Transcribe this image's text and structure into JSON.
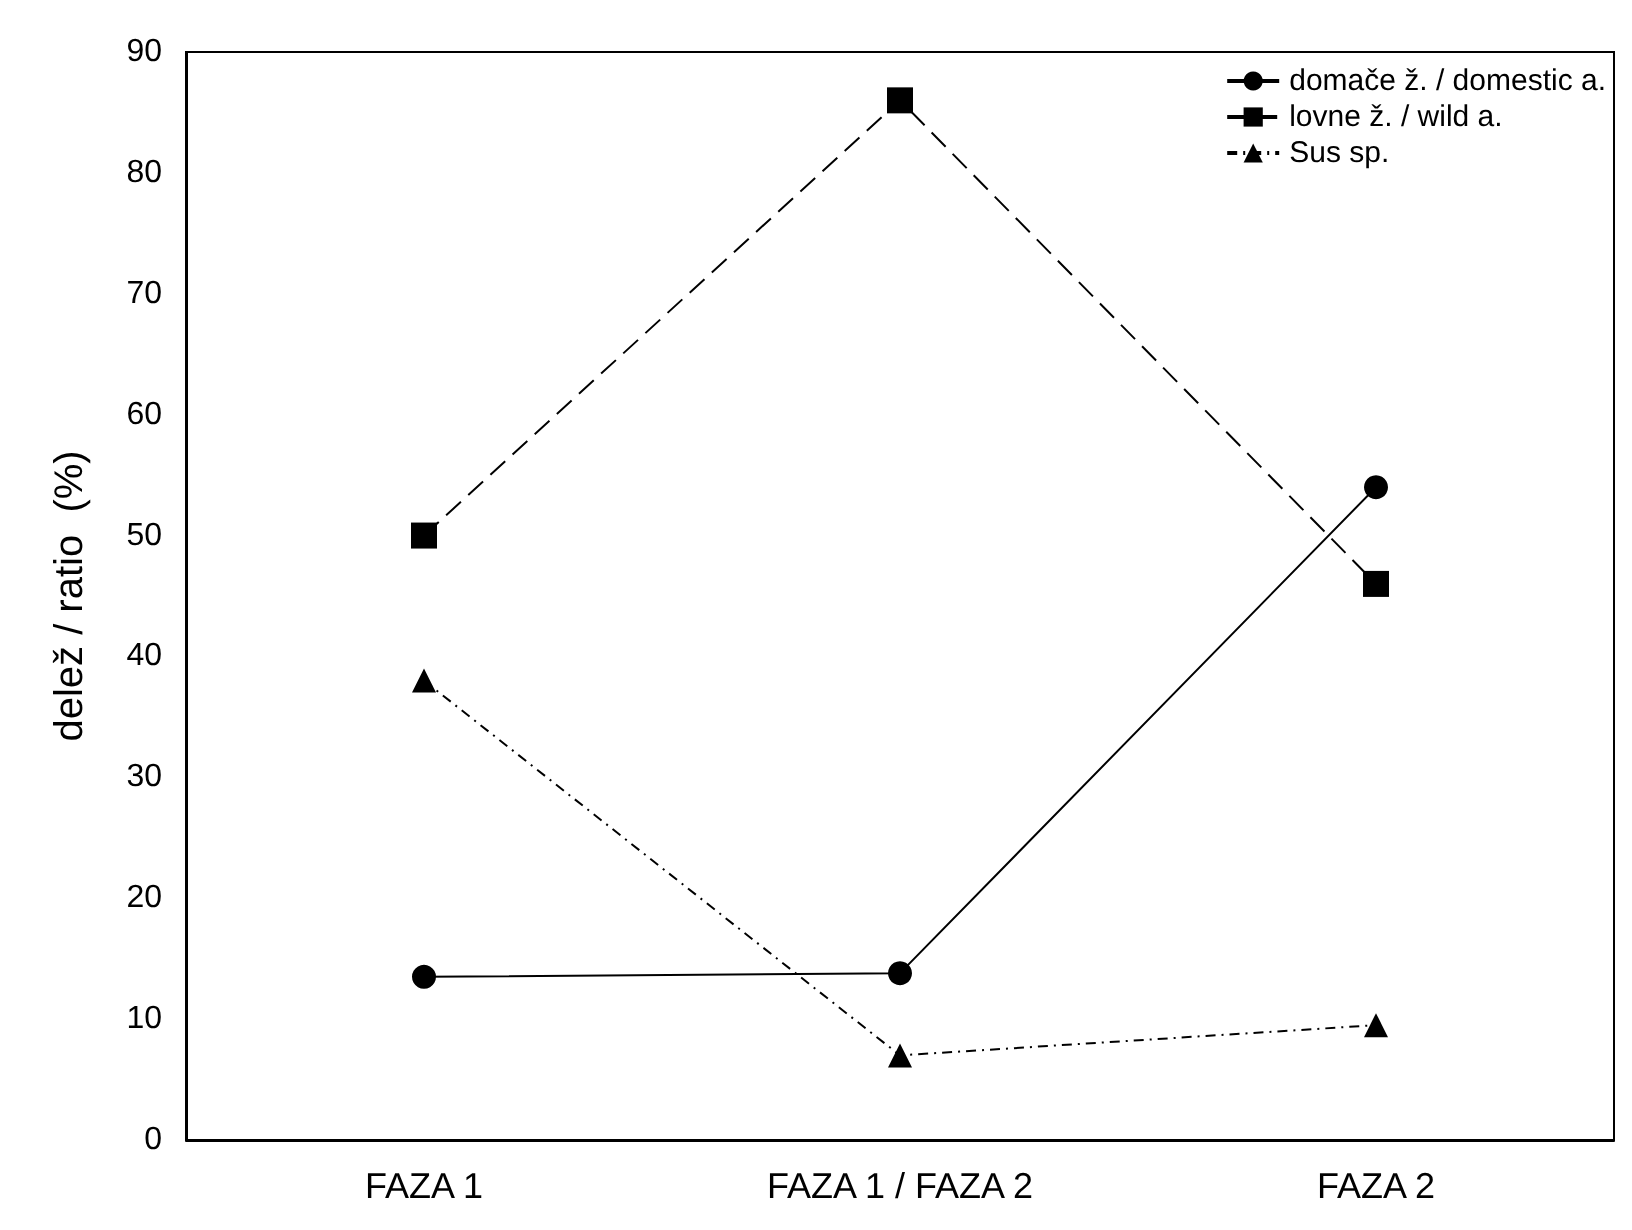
{
  "chart_data": {
    "type": "line",
    "ylabel": "delež / ratio  (%)",
    "categories": [
      "FAZA 1",
      "FAZA 1 / FAZA 2",
      "FAZA 2"
    ],
    "series": [
      {
        "name": "domače ž. / domestic a.",
        "color": "#000000",
        "marker": "circle",
        "line_style": "solid",
        "values": [
          13.5,
          13.8,
          54
        ]
      },
      {
        "name": "lovne ž. / wild a.",
        "color": "#000000",
        "marker": "square",
        "line_style": "dashed",
        "values": [
          50,
          86,
          46
        ]
      },
      {
        "name": "Sus sp.",
        "color": "#000000",
        "marker": "triangle",
        "line_style": "dotted",
        "values": [
          38,
          7,
          9.5
        ]
      }
    ],
    "ylim": [
      0,
      90
    ],
    "yticks": [
      0,
      10,
      20,
      30,
      40,
      50,
      60,
      70,
      80,
      90
    ],
    "grid": false,
    "legend": "top right"
  }
}
